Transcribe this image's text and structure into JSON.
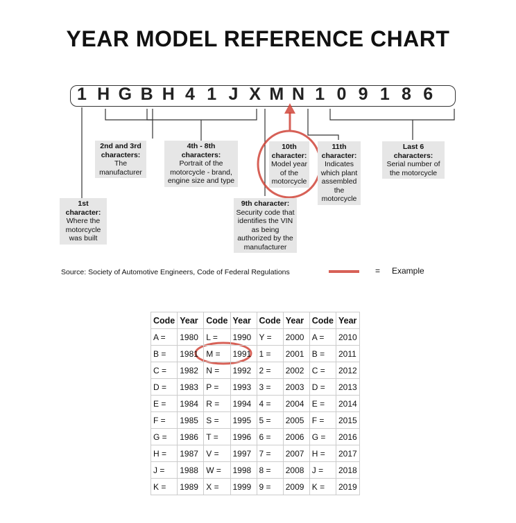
{
  "title": "YEAR MODEL REFERENCE CHART",
  "vin": [
    "1",
    "H",
    "G",
    "B",
    "H",
    "4",
    "1",
    "J",
    "X",
    "M",
    "N",
    "1",
    "0",
    "9",
    "1",
    "8",
    "6"
  ],
  "labels": {
    "first": {
      "head": "1st character:",
      "body": "Where the motorcycle was built"
    },
    "second_third": {
      "head": "2nd and 3rd characters:",
      "body": "The manufacturer"
    },
    "fourth_eighth": {
      "head": "4th - 8th characters:",
      "body": "Portrait of the motorcycle - brand, engine size and type"
    },
    "ninth": {
      "head": "9th character:",
      "body": "Security code that identifies the VIN as being authorized by the manufacturer"
    },
    "tenth": {
      "head": "10th character:",
      "body": "Model year of the motorcycle"
    },
    "eleventh": {
      "head": "11th character:",
      "body": "Indicates which plant assembled the motorcycle"
    },
    "last6": {
      "head": "Last 6 characters:",
      "body": "Serial number of the motorcycle"
    }
  },
  "source": "Source:  Society of Automotive Engineers, Code of Federal Regulations",
  "legend": {
    "equals": "=",
    "label": "Example",
    "color": "#d0453a"
  },
  "table": {
    "headers": [
      "Code",
      "Year",
      "Code",
      "Year",
      "Code",
      "Year",
      "Code",
      "Year"
    ],
    "rows": [
      [
        "A =",
        "1980",
        "L =",
        "1990",
        "Y =",
        "2000",
        "A =",
        "2010"
      ],
      [
        "B =",
        "1981",
        "M =",
        "1991",
        "1 =",
        "2001",
        "B =",
        "2011"
      ],
      [
        "C =",
        "1982",
        "N =",
        "1992",
        "2 =",
        "2002",
        "C =",
        "2012"
      ],
      [
        "D =",
        "1983",
        "P =",
        "1993",
        "3 =",
        "2003",
        "D =",
        "2013"
      ],
      [
        "E =",
        "1984",
        "R =",
        "1994",
        "4 =",
        "2004",
        "E =",
        "2014"
      ],
      [
        "F =",
        "1985",
        "S =",
        "1995",
        "5 =",
        "2005",
        "F =",
        "2015"
      ],
      [
        "G =",
        "1986",
        "T =",
        "1996",
        "6 =",
        "2006",
        "G =",
        "2016"
      ],
      [
        "H =",
        "1987",
        "V =",
        "1997",
        "7 =",
        "2007",
        "H =",
        "2017"
      ],
      [
        "J =",
        "1988",
        "W =",
        "1998",
        "8 =",
        "2008",
        "J =",
        "2018"
      ],
      [
        "K =",
        "1989",
        "X =",
        "1999",
        "9 =",
        "2009",
        "K =",
        "2019"
      ]
    ]
  }
}
